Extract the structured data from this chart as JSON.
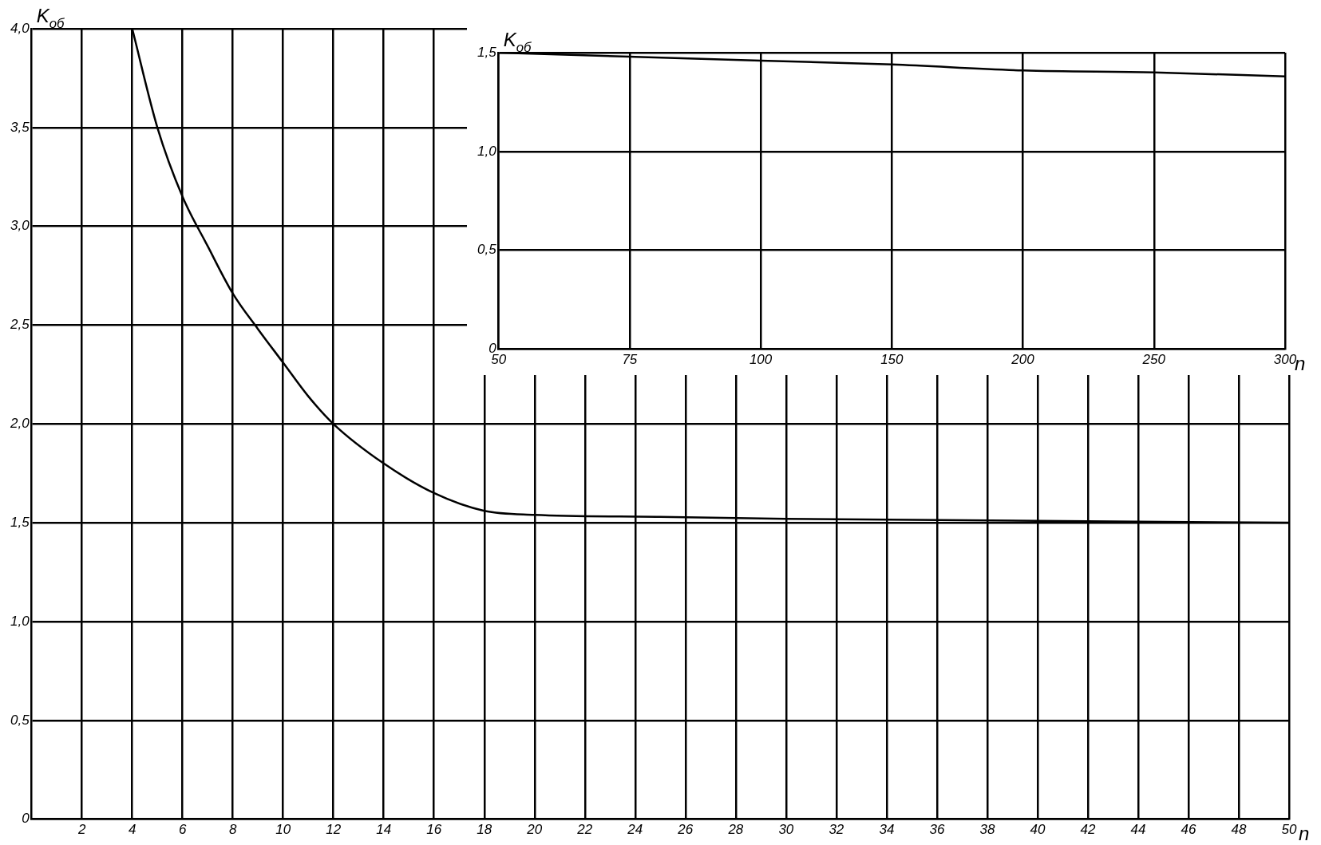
{
  "chart_data": [
    {
      "type": "line",
      "xlabel": "n",
      "ylabel": "K$_{об}$",
      "x": [
        4,
        5,
        6,
        7,
        8,
        9,
        10,
        11,
        12,
        14,
        16,
        18,
        20,
        25,
        30,
        40,
        50
      ],
      "series": [
        {
          "color": "#000000",
          "values": [
            4.0,
            3.5,
            3.15,
            2.9,
            2.66,
            2.48,
            2.31,
            2.14,
            2.0,
            1.8,
            1.65,
            1.56,
            1.54,
            1.53,
            1.52,
            1.51,
            1.5
          ]
        }
      ],
      "xlim": [
        0,
        50
      ],
      "xticks": [
        2,
        4,
        6,
        8,
        10,
        12,
        14,
        16,
        18,
        20,
        22,
        24,
        26,
        28,
        30,
        32,
        34,
        36,
        38,
        40,
        42,
        44,
        46,
        48,
        50
      ],
      "ylim": [
        0,
        4.0
      ],
      "yticks": [
        0,
        {
          "value": 0.5,
          "label": "0,5"
        },
        {
          "value": 1.0,
          "label": "1,0"
        },
        {
          "value": 1.5,
          "label": "1,5"
        },
        {
          "value": 2.0,
          "label": "2,0"
        },
        {
          "value": 2.5,
          "label": "2,5"
        },
        {
          "value": 3.0,
          "label": "3,0"
        },
        {
          "value": 3.5,
          "label": "3,5"
        },
        {
          "value": 4.0,
          "label": "4,0"
        }
      ],
      "grid": true,
      "legend": false
    },
    {
      "type": "line",
      "xlabel": "n",
      "ylabel": "K$_{об}$",
      "categories": [
        "50",
        "75",
        "100",
        "150",
        "200",
        "250",
        "300"
      ],
      "series": [
        {
          "color": "#000000",
          "values": [
            1.5,
            1.48,
            1.46,
            1.44,
            1.41,
            1.4,
            1.38
          ]
        }
      ],
      "ylim": [
        0,
        1.5
      ],
      "yticks": [
        0,
        {
          "value": 0.5,
          "label": "0,5"
        },
        {
          "value": 1.0,
          "label": "1,0"
        },
        {
          "value": 1.5,
          "label": "1,5"
        }
      ],
      "grid": true,
      "legend": false
    }
  ]
}
